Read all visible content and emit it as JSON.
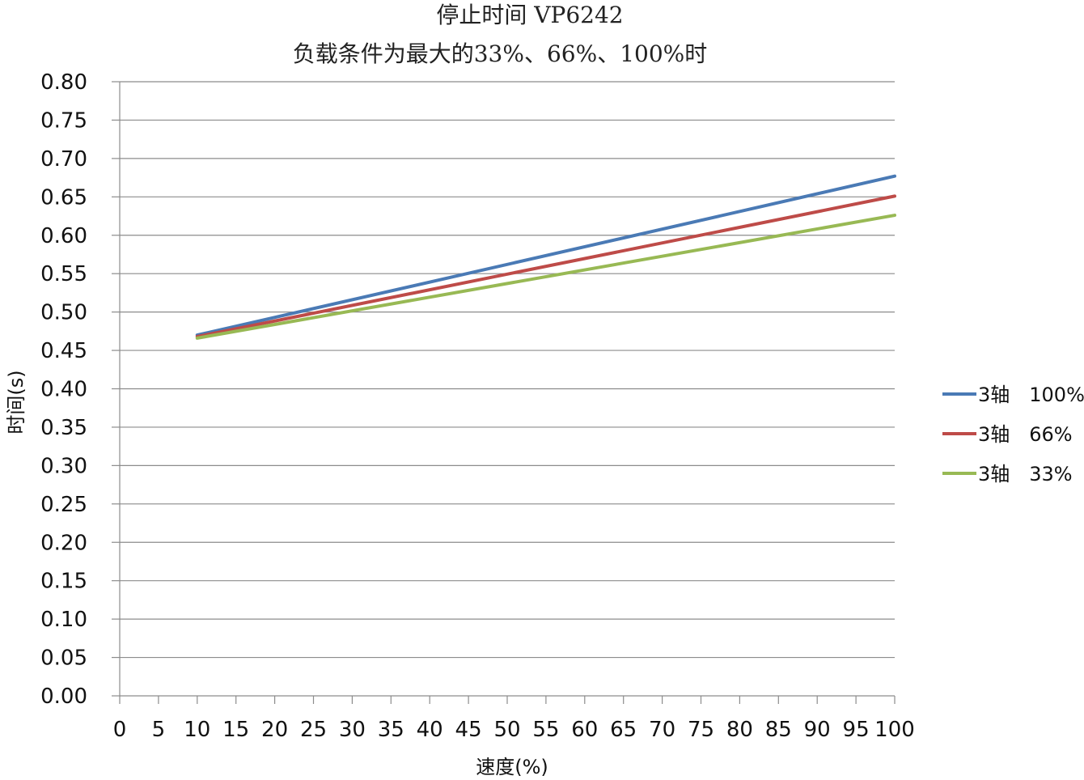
{
  "chart_data": {
    "type": "line",
    "title": "停止时间 VP6242",
    "subtitle": "负载条件为最大的33%、66%、100%时",
    "xlabel": "速度(%)",
    "ylabel": "时间(s)",
    "xlim": [
      0,
      100
    ],
    "ylim": [
      0,
      0.8
    ],
    "x_ticks": [
      "0",
      "5",
      "10",
      "15",
      "20",
      "25",
      "30",
      "35",
      "40",
      "45",
      "50",
      "55",
      "60",
      "65",
      "70",
      "75",
      "80",
      "85",
      "90",
      "95",
      "100"
    ],
    "y_ticks": [
      "0.00",
      "0.05",
      "0.10",
      "0.15",
      "0.20",
      "0.25",
      "0.30",
      "0.35",
      "0.40",
      "0.45",
      "0.50",
      "0.55",
      "0.60",
      "0.65",
      "0.70",
      "0.75",
      "0.80"
    ],
    "grid": "horizontal",
    "legend_position": "right",
    "series": [
      {
        "name": "3轴　100%",
        "color": "#4a7ab5",
        "x": [
          10,
          100
        ],
        "y": [
          0.47,
          0.677
        ]
      },
      {
        "name": "3轴　66%",
        "color": "#be4b48",
        "x": [
          10,
          100
        ],
        "y": [
          0.468,
          0.651
        ]
      },
      {
        "name": "3轴　33%",
        "color": "#98b954",
        "x": [
          10,
          100
        ],
        "y": [
          0.466,
          0.626
        ]
      }
    ]
  }
}
